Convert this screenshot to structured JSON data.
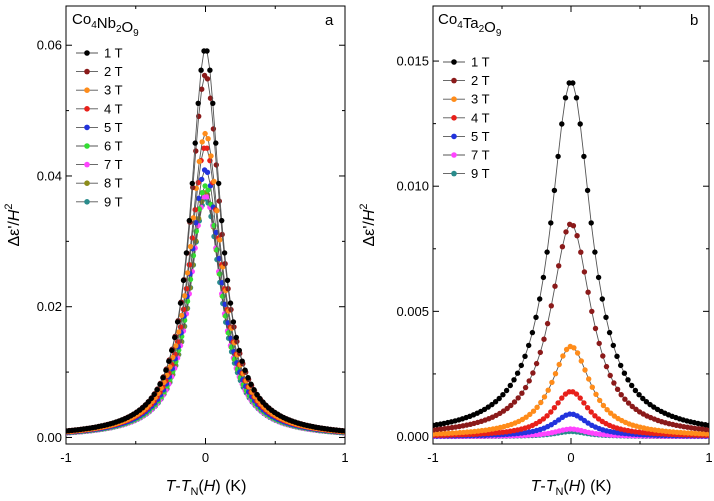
{
  "chart_data": [
    {
      "type": "scatter",
      "panel_label": "a",
      "compound": {
        "main": "Co",
        "parts": [
          [
            "Co",
            "4"
          ],
          [
            "Nb",
            "2"
          ],
          [
            "O",
            "9"
          ]
        ]
      },
      "xlabel": {
        "a": "T",
        "b": "-",
        "c": "T",
        "sub": "N",
        "d": "(H)",
        "unit": "(K)"
      },
      "ylabel": {
        "a": "Δε'/",
        "b": "H",
        "sup": "2"
      },
      "xlim": [
        -1,
        1
      ],
      "ylim": [
        -0.001,
        0.066
      ],
      "xticks": [
        -1,
        0,
        1
      ],
      "xtick_labels": [
        "-1",
        "0",
        "1"
      ],
      "yticks": [
        0.0,
        0.02,
        0.04,
        0.06
      ],
      "ytick_labels": [
        "0.00",
        "0.02",
        "0.04",
        "0.06"
      ],
      "legend_position": "top-left",
      "series": [
        {
          "name": "1 T",
          "color": "#000000",
          "peak": 0.0595,
          "width": 0.13
        },
        {
          "name": "2 T",
          "color": "#8b1a1a",
          "peak": 0.0555,
          "width": 0.135
        },
        {
          "name": "3 T",
          "color": "#ff8c1a",
          "peak": 0.0465,
          "width": 0.14
        },
        {
          "name": "4 T",
          "color": "#e8201a",
          "peak": 0.0445,
          "width": 0.14
        },
        {
          "name": "5 T",
          "color": "#2233dd",
          "peak": 0.041,
          "width": 0.14
        },
        {
          "name": "6 T",
          "color": "#33dd33",
          "peak": 0.0385,
          "width": 0.14
        },
        {
          "name": "7 T",
          "color": "#ff44ff",
          "peak": 0.037,
          "width": 0.14
        },
        {
          "name": "8 T",
          "color": "#8c8c1a",
          "peak": 0.0375,
          "width": 0.14
        },
        {
          "name": "9 T",
          "color": "#2a8c8c",
          "peak": 0.0365,
          "width": 0.14
        }
      ]
    },
    {
      "type": "scatter",
      "panel_label": "b",
      "compound": {
        "main": "Co",
        "parts": [
          [
            "Co",
            "4"
          ],
          [
            "Ta",
            "2"
          ],
          [
            "O",
            "9"
          ]
        ]
      },
      "xlabel": {
        "a": "T",
        "b": "-",
        "c": "T",
        "sub": "N",
        "d": "(H)",
        "unit": "(K)"
      },
      "ylabel": {
        "a": "Δε'/",
        "b": "H",
        "sup": "2"
      },
      "xlim": [
        -1,
        1
      ],
      "ylim": [
        -0.0003,
        0.0172
      ],
      "xticks": [
        -1,
        0,
        1
      ],
      "xtick_labels": [
        "-1",
        "0",
        "1"
      ],
      "yticks": [
        0.0,
        0.005,
        0.01,
        0.015
      ],
      "ytick_labels": [
        "0.000",
        "0.005",
        "0.010",
        "0.015"
      ],
      "legend_position": "top-left",
      "series": [
        {
          "name": "1 T",
          "color": "#000000",
          "peak": 0.0142,
          "width": 0.18
        },
        {
          "name": "2 T",
          "color": "#8b1a1a",
          "peak": 0.0085,
          "width": 0.18
        },
        {
          "name": "3 T",
          "color": "#ff8c1a",
          "peak": 0.0036,
          "width": 0.17
        },
        {
          "name": "4 T",
          "color": "#e8201a",
          "peak": 0.0018,
          "width": 0.16
        },
        {
          "name": "5 T",
          "color": "#2233dd",
          "peak": 0.0009,
          "width": 0.15
        },
        {
          "name": "7 T",
          "color": "#ff44ff",
          "peak": 0.0003,
          "width": 0.14
        },
        {
          "name": "9 T",
          "color": "#2a8c8c",
          "peak": 0.0002,
          "width": 0.14
        }
      ]
    }
  ]
}
